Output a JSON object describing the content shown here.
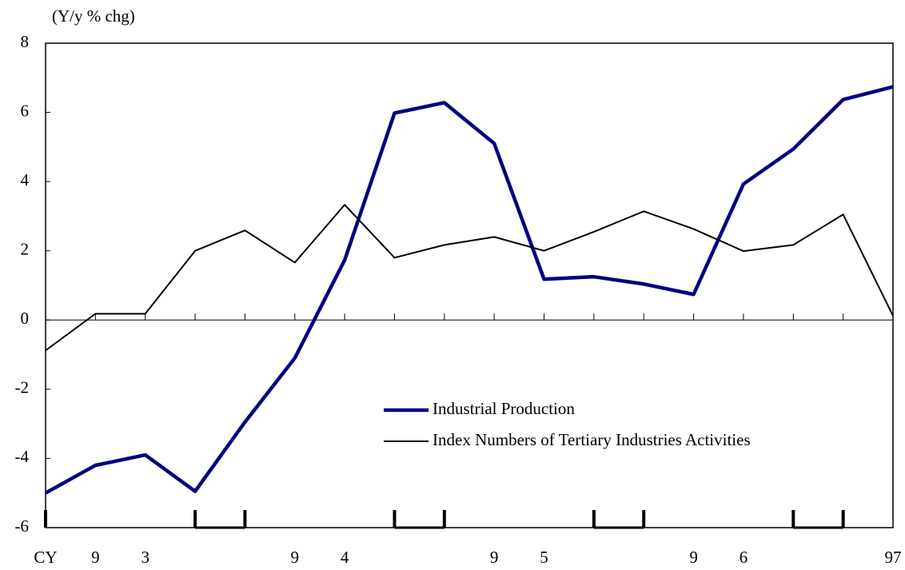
{
  "chart_data": {
    "type": "line",
    "y_axis_label": "(Y/y % chg)",
    "categories": [
      "CY",
      "9",
      "3",
      null,
      null,
      "9",
      "4",
      null,
      null,
      "9",
      "5",
      null,
      null,
      "9",
      "6",
      null,
      null,
      "97"
    ],
    "series": [
      {
        "name": "Industrial Production",
        "color": "#000080",
        "values": [
          -5.0,
          -4.2,
          -3.9,
          -4.95,
          -2.95,
          -1.1,
          1.73,
          5.98,
          6.28,
          5.1,
          1.18,
          1.25,
          1.04,
          0.74,
          3.93,
          4.94,
          6.37,
          6.74
        ]
      },
      {
        "name": "Index Numbers of Tertiary Industries Activities",
        "color": "#000000",
        "values": [
          -0.88,
          0.18,
          0.18,
          2.0,
          2.59,
          1.66,
          3.33,
          1.8,
          2.17,
          2.4,
          2.0,
          2.55,
          3.14,
          2.63,
          1.99,
          2.17,
          3.05,
          0.12
        ]
      }
    ],
    "ylim": [
      -6,
      8
    ],
    "yticks": [
      -6,
      -4,
      -2,
      0,
      2,
      4,
      6,
      8
    ]
  }
}
